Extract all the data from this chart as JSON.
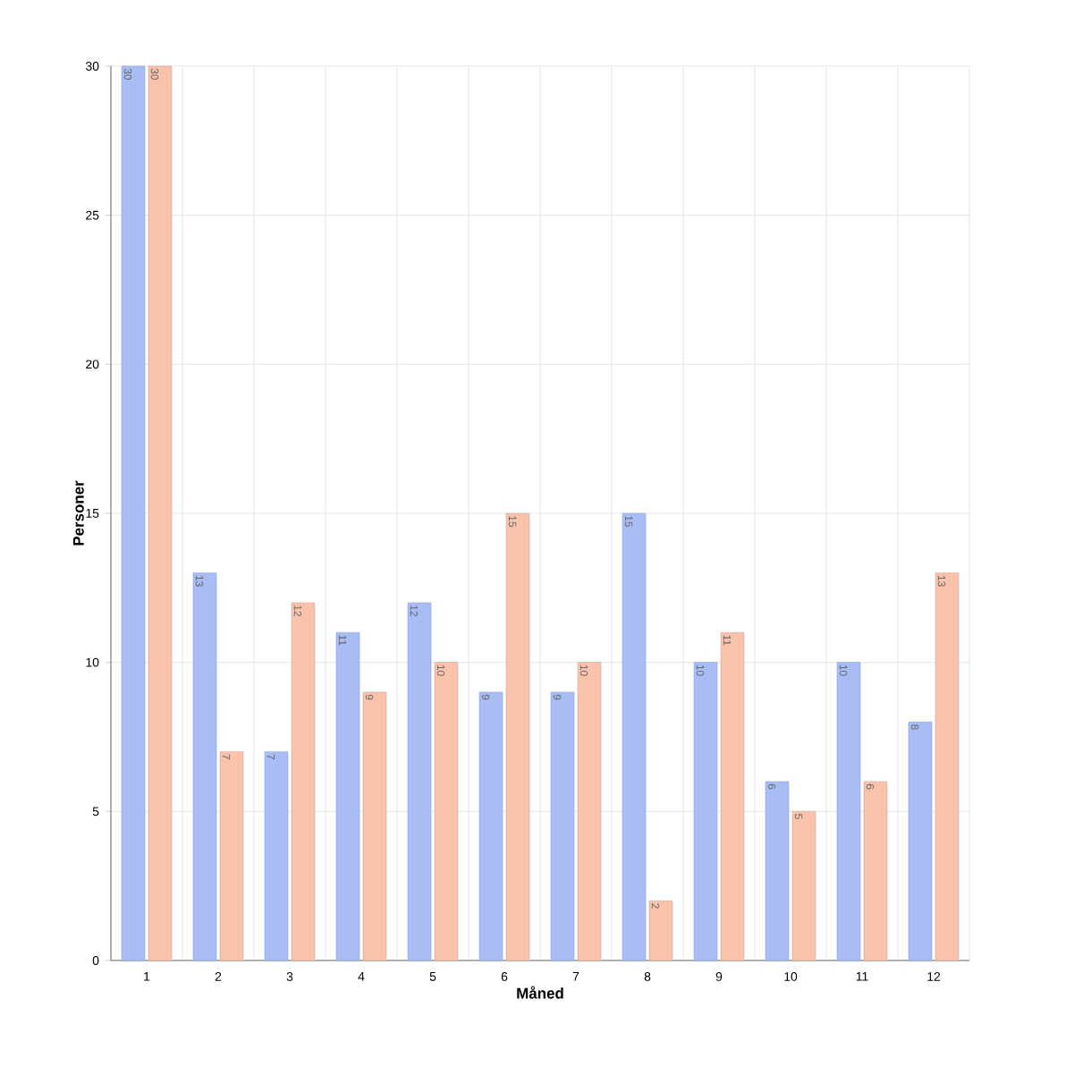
{
  "chart_data": {
    "type": "bar",
    "xlabel": "Måned",
    "ylabel": "Personer",
    "categories": [
      "1",
      "2",
      "3",
      "4",
      "5",
      "6",
      "7",
      "8",
      "9",
      "10",
      "11",
      "12"
    ],
    "series": [
      {
        "color": "#a9bdf5",
        "values": [
          30,
          13,
          7,
          11,
          12,
          9,
          9,
          15,
          10,
          6,
          10,
          8
        ]
      },
      {
        "color": "#f9c3ab",
        "values": [
          30,
          7,
          12,
          9,
          10,
          15,
          10,
          2,
          11,
          5,
          6,
          13
        ]
      }
    ],
    "ylim": [
      0,
      30
    ],
    "yticks": [
      0,
      5,
      10,
      15,
      20,
      25,
      30
    ],
    "grid": true,
    "data_labels": true
  }
}
